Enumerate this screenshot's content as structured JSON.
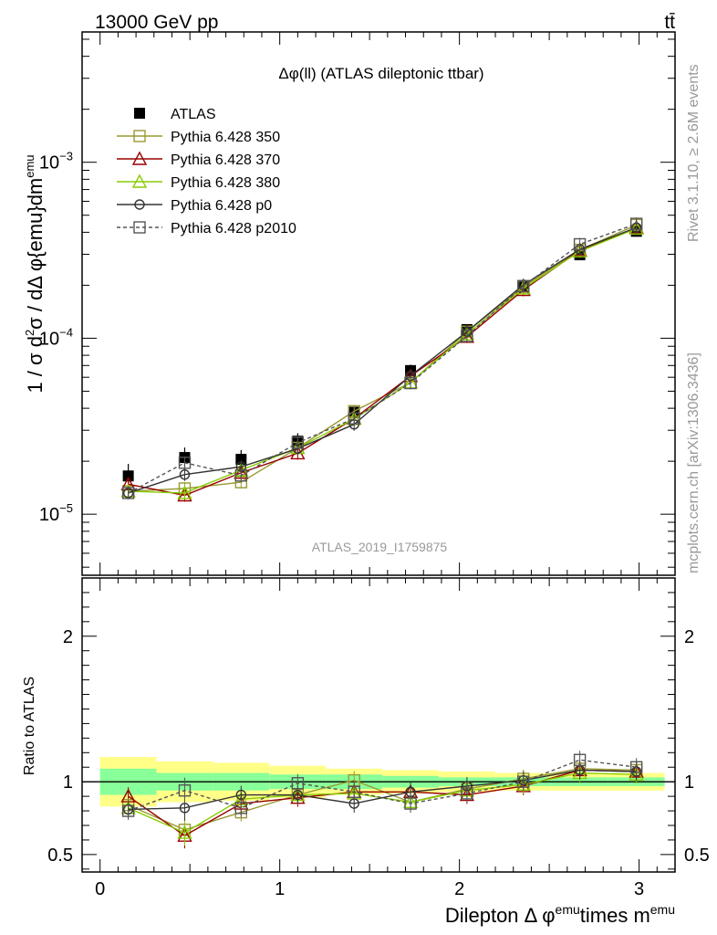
{
  "header": {
    "left": "13000 GeV pp",
    "right": "tt̄"
  },
  "side_labels": {
    "rivet": "Rivet 3.1.10, ≥ 2.6M events",
    "mcplots": "mcplots.cern.ch [arXiv:1306.3436]"
  },
  "watermark": "ATLAS_2019_I1759875",
  "chart_data": [
    {
      "type": "line",
      "title": "Δφ(ll) (ATLAS dileptonic ttbar)",
      "ylabel": "1 / σ  d²σ / dΔ φ{emu}dm^emu",
      "yscale": "log",
      "xlim": [
        -0.1,
        3.2
      ],
      "ylim": [
        4.5e-06,
        0.0055
      ],
      "yticks": [
        {
          "v": 1e-05,
          "base": "10",
          "exp": "−5"
        },
        {
          "v": 0.0001,
          "base": "10",
          "exp": "−4"
        },
        {
          "v": 0.001,
          "base": "10",
          "exp": "−3"
        }
      ],
      "legend_position": "top-left",
      "x": [
        0.157,
        0.471,
        0.785,
        1.1,
        1.414,
        1.728,
        2.042,
        2.356,
        2.67,
        2.985
      ],
      "data": {
        "name": "ATLAS",
        "values": [
          1.65e-05,
          2.1e-05,
          2.05e-05,
          2.6e-05,
          3.8e-05,
          6.55e-05,
          0.000112,
          0.000197,
          0.000298,
          0.000405
        ],
        "rel_err_inner": [
          0.09,
          0.06,
          0.06,
          0.05,
          0.05,
          0.04,
          0.03,
          0.03,
          0.03,
          0.03
        ],
        "rel_err_outer": [
          0.17,
          0.14,
          0.13,
          0.11,
          0.09,
          0.08,
          0.07,
          0.06,
          0.06,
          0.06
        ]
      },
      "series": [
        {
          "name": "Pythia 6.428 350",
          "color": "#999933",
          "marker": "square-open",
          "dash": "",
          "values": [
            1.35e-05,
            1.4e-05,
            1.52e-05,
            2.38e-05,
            3.85e-05,
            5.6e-05,
            0.000109,
            0.000196,
            0.000318,
            0.00044
          ]
        },
        {
          "name": "Pythia 6.428 370",
          "color": "#990000",
          "marker": "triangle-open",
          "dash": "",
          "values": [
            1.48e-05,
            1.28e-05,
            1.72e-05,
            2.22e-05,
            3.5e-05,
            6.1e-05,
            0.000102,
            0.000188,
            0.000316,
            0.000425
          ]
        },
        {
          "name": "Pythia 6.428 380",
          "color": "#88cc00",
          "marker": "triangle-open",
          "dash": "",
          "values": [
            1.35e-05,
            1.32e-05,
            1.78e-05,
            2.38e-05,
            3.48e-05,
            5.6e-05,
            0.0001055,
            0.000192,
            0.000312,
            0.00042
          ]
        },
        {
          "name": "Pythia 6.428 p0",
          "color": "#333333",
          "marker": "circle-open",
          "dash": "",
          "values": [
            1.32e-05,
            1.68e-05,
            1.86e-05,
            2.36e-05,
            3.24e-05,
            6.12e-05,
            0.000109,
            0.000201,
            0.00032,
            0.000425
          ]
        },
        {
          "name": "Pythia 6.428 p2010",
          "color": "#555555",
          "marker": "square-open",
          "dash": "4,3",
          "values": [
            1.32e-05,
            1.96e-05,
            1.66e-05,
            2.55e-05,
            3.5e-05,
            5.56e-05,
            0.000103,
            0.000198,
            0.000342,
            0.000447
          ]
        }
      ]
    },
    {
      "type": "line",
      "ylabel": "Ratio to ATLAS",
      "xlabel": "Dilepton Δ φ^emu times m^emu",
      "xlim": [
        -0.1,
        3.2
      ],
      "ylim": [
        0.38,
        2.4
      ],
      "yticks": [
        0.5,
        1,
        2
      ],
      "xticks": [
        0,
        1,
        2,
        3
      ],
      "x": [
        0.157,
        0.471,
        0.785,
        1.1,
        1.414,
        1.728,
        2.042,
        2.356,
        2.67,
        2.985
      ],
      "band_inner": [
        0.09,
        0.06,
        0.06,
        0.05,
        0.05,
        0.04,
        0.03,
        0.03,
        0.03,
        0.03
      ],
      "band_outer": [
        0.17,
        0.14,
        0.13,
        0.11,
        0.09,
        0.08,
        0.07,
        0.06,
        0.06,
        0.06
      ],
      "series": [
        {
          "name": "Pythia 6.428 350",
          "values": [
            0.84,
            0.67,
            0.79,
            0.91,
            1.01,
            0.86,
            0.95,
            1.02,
            1.09,
            1.08
          ]
        },
        {
          "name": "Pythia 6.428 370",
          "values": [
            0.9,
            0.63,
            0.85,
            0.89,
            0.93,
            0.93,
            0.91,
            0.97,
            1.08,
            1.07
          ]
        },
        {
          "name": "Pythia 6.428 380",
          "values": [
            0.82,
            0.65,
            0.88,
            0.91,
            0.92,
            0.86,
            0.94,
            0.98,
            1.06,
            1.05
          ]
        },
        {
          "name": "Pythia 6.428 p0",
          "values": [
            0.81,
            0.82,
            0.91,
            0.91,
            0.85,
            0.93,
            0.97,
            1.01,
            1.08,
            1.07
          ]
        },
        {
          "name": "Pythia 6.428 p2010",
          "values": [
            0.8,
            0.94,
            0.82,
            0.99,
            0.93,
            0.85,
            0.92,
            1.0,
            1.15,
            1.1
          ]
        }
      ]
    }
  ]
}
